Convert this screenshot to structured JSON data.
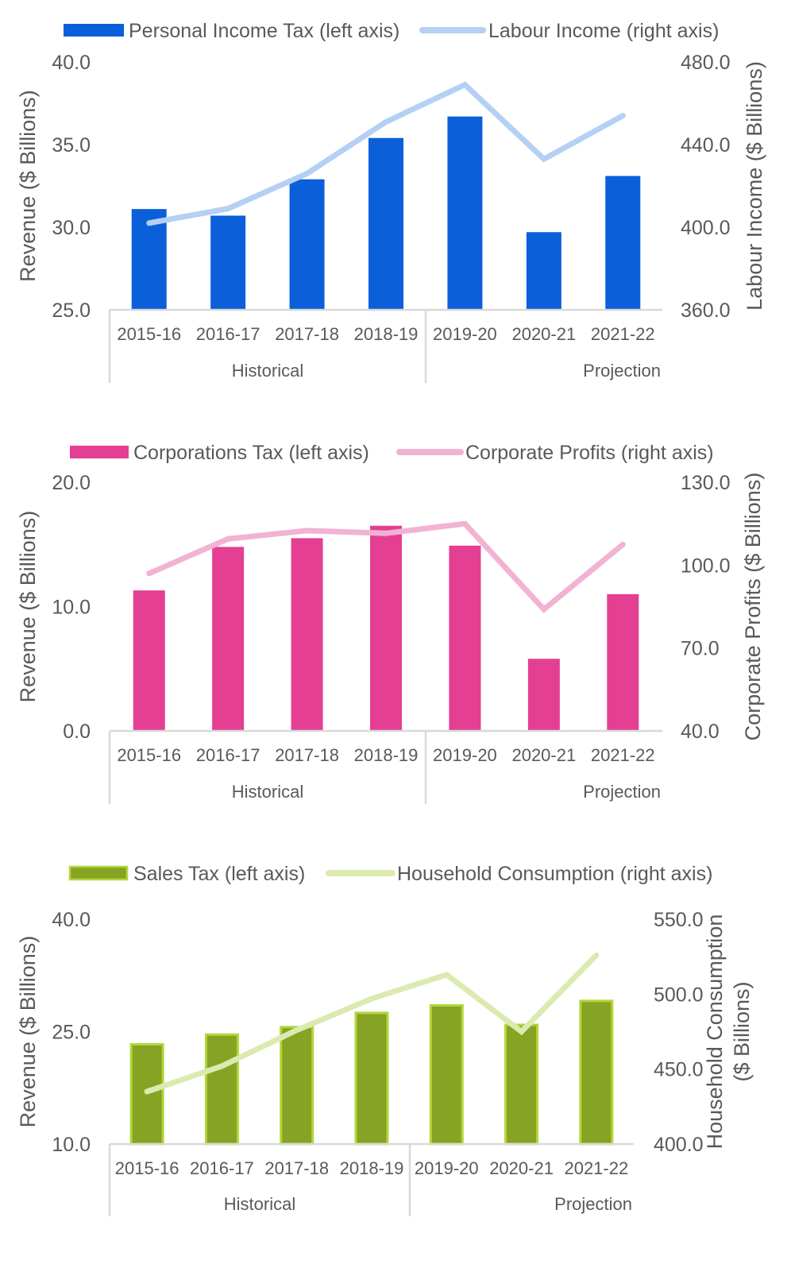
{
  "chart_data": [
    {
      "type": "bar",
      "categories": [
        "2015-16",
        "2016-17",
        "2017-18",
        "2018-19",
        "2019-20",
        "2020-21",
        "2021-22"
      ],
      "groups": [
        {
          "label": "Historical",
          "categories": [
            "2015-16",
            "2016-17",
            "2017-18",
            "2018-19"
          ]
        },
        {
          "label": "Projection",
          "categories": [
            "2019-20",
            "2020-21",
            "2021-22"
          ]
        }
      ],
      "series": [
        {
          "name": "Personal Income Tax (left axis)",
          "type": "bar",
          "axis": "left",
          "color": "#0b5fd8",
          "values": [
            31.1,
            30.7,
            32.9,
            35.4,
            36.7,
            29.7,
            33.1
          ]
        },
        {
          "name": "Labour Income (right axis)",
          "type": "line",
          "axis": "right",
          "color": "#b4d0f4",
          "values": [
            402,
            409,
            426,
            451,
            469,
            433,
            454
          ]
        }
      ],
      "y_left": {
        "label": "Revenue ($ Billions)",
        "range": [
          25,
          40
        ],
        "ticks": [
          "25.0",
          "30.0",
          "35.0",
          "40.0"
        ]
      },
      "y_right": {
        "label": "Labour Income ($ Billions)",
        "range": [
          360,
          480
        ],
        "ticks": [
          "360.0",
          "400.0",
          "440.0",
          "480.0"
        ]
      },
      "legend_position": "top"
    },
    {
      "type": "bar",
      "categories": [
        "2015-16",
        "2016-17",
        "2017-18",
        "2018-19",
        "2019-20",
        "2020-21",
        "2021-22"
      ],
      "groups": [
        {
          "label": "Historical",
          "categories": [
            "2015-16",
            "2016-17",
            "2017-18",
            "2018-19"
          ]
        },
        {
          "label": "Projection",
          "categories": [
            "2019-20",
            "2020-21",
            "2021-22"
          ]
        }
      ],
      "series": [
        {
          "name": "Corporations Tax (left axis)",
          "type": "bar",
          "axis": "left",
          "color": "#e43f93",
          "values": [
            11.3,
            14.8,
            15.5,
            16.5,
            14.9,
            5.8,
            11.0
          ]
        },
        {
          "name": "Corporate Profits (right axis)",
          "type": "line",
          "axis": "right",
          "color": "#f2b2d4",
          "values": [
            97.0,
            109.5,
            112.5,
            111.5,
            115.0,
            84.0,
            107.5
          ]
        }
      ],
      "y_left": {
        "label": "Revenue ($ Billions)",
        "range": [
          0,
          20
        ],
        "ticks": [
          "0.0",
          "10.0",
          "20.0"
        ]
      },
      "y_right": {
        "label": "Corporate Profits ($ Billions)",
        "range": [
          40,
          130
        ],
        "ticks": [
          "40.0",
          "70.0",
          "100.0",
          "130.0"
        ]
      },
      "legend_position": "top"
    },
    {
      "type": "bar",
      "categories": [
        "2015-16",
        "2016-17",
        "2017-18",
        "2018-19",
        "2019-20",
        "2020-21",
        "2021-22"
      ],
      "groups": [
        {
          "label": "Historical",
          "categories": [
            "2015-16",
            "2016-17",
            "2017-18",
            "2018-19"
          ]
        },
        {
          "label": "Projection",
          "categories": [
            "2019-20",
            "2020-21",
            "2021-22"
          ]
        }
      ],
      "series": [
        {
          "name": "Sales Tax (left axis)",
          "type": "bar",
          "axis": "left",
          "color": "#87a324",
          "border": "#b3d637",
          "values": [
            23.3,
            24.6,
            25.6,
            27.5,
            28.5,
            25.9,
            29.1
          ]
        },
        {
          "name": "Household Consumption (right axis)",
          "type": "line",
          "axis": "right",
          "color": "#dbebb0",
          "values": [
            435,
            452,
            476,
            497,
            513,
            475,
            526
          ]
        }
      ],
      "y_left": {
        "label": "Revenue ($ Billions)",
        "range": [
          10,
          40
        ],
        "ticks": [
          "10.0",
          "25.0",
          "40.0"
        ]
      },
      "y_right": {
        "label": "Household Consumption ($ Billions)",
        "label_lines": [
          "Household Consumption",
          "($ Billions)"
        ],
        "range": [
          400,
          550
        ],
        "ticks": [
          "400.0",
          "450.0",
          "500.0",
          "550.0"
        ]
      },
      "legend_position": "top"
    }
  ]
}
